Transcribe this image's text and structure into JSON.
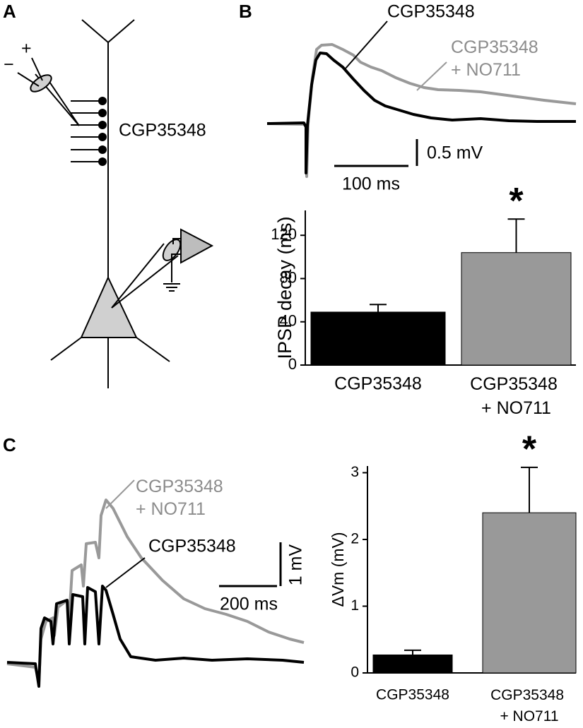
{
  "panel_labels": {
    "a": "A",
    "b": "B",
    "c": "C"
  },
  "diagram": {
    "drug_label": "CGP35348",
    "plus": "+",
    "minus": "−"
  },
  "traces_b": {
    "label_control": "CGP35348",
    "label_drug": "CGP35348 + NO711",
    "scale_time": "100 ms",
    "scale_voltage": "0.5 mV"
  },
  "traces_c": {
    "label_control": "CGP35348",
    "label_drug": "CGP35348 + NO711",
    "scale_time": "200 ms",
    "scale_voltage": "1 mV"
  },
  "chart_data": [
    {
      "type": "bar",
      "ylabel": "IPSP decay (ms)",
      "categories": [
        "CGP35348",
        "CGP35348 + NO711"
      ],
      "values": [
        49,
        104
      ],
      "errors": [
        7,
        31
      ],
      "colors": [
        "#000000",
        "#999999"
      ],
      "ylim": [
        0,
        143
      ],
      "yticks": [
        0,
        40,
        80,
        120
      ],
      "annotation": "*"
    },
    {
      "type": "bar",
      "ylabel": "ΔVm  (mV)",
      "categories": [
        "CGP35348",
        "CGP35348 + NO711"
      ],
      "values": [
        0.27,
        2.4
      ],
      "errors": [
        0.07,
        0.68
      ],
      "colors": [
        "#000000",
        "#999999"
      ],
      "ylim": [
        0,
        3.1
      ],
      "yticks": [
        0,
        1,
        2,
        3
      ],
      "annotation": "*"
    }
  ]
}
